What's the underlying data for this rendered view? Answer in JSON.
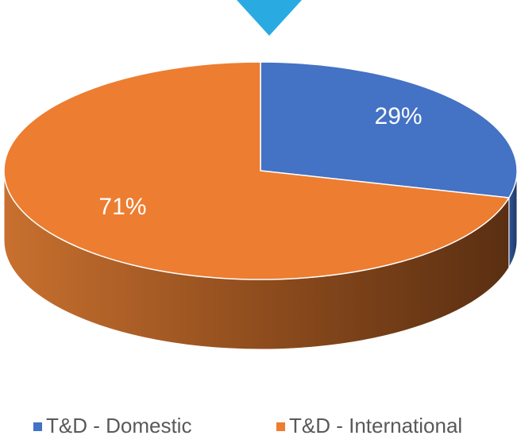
{
  "chart_data": {
    "type": "pie",
    "categories": [
      "T&D - Domestic",
      "T&D - International"
    ],
    "values": [
      29,
      71
    ],
    "value_labels": [
      "29%",
      "71%"
    ],
    "colors": [
      "#4472c4",
      "#ed7d31"
    ],
    "legend": "bottom"
  }
}
